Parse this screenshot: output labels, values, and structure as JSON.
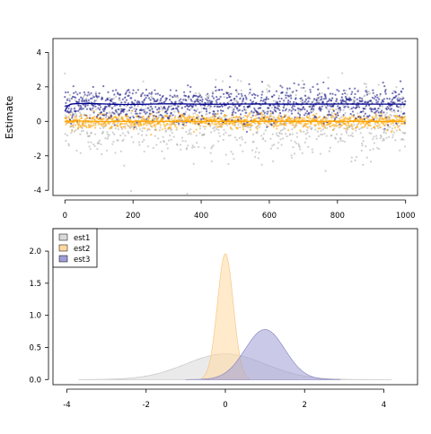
{
  "chart_data": [
    {
      "type": "scatter",
      "panel": "top",
      "title": "",
      "xlabel": "",
      "ylabel": "Estimate",
      "xlim": [
        -35,
        1035
      ],
      "ylim": [
        -4.3,
        4.8
      ],
      "xticks": [
        0,
        200,
        400,
        600,
        800,
        1000
      ],
      "xtick_labels": [
        "0",
        "200",
        "400",
        "600",
        "800",
        "1000"
      ],
      "yticks": [
        -4,
        -2,
        0,
        2,
        4
      ],
      "ytick_labels": [
        "-4",
        "-2",
        "0",
        "2",
        "4"
      ],
      "grid": false,
      "n_points_per_series": 1000,
      "series": [
        {
          "name": "est1",
          "color": "#aaaaaa",
          "mean": 0.0,
          "sd": 1.0,
          "running_mean_shown": false
        },
        {
          "name": "est2",
          "color": "#ffa500",
          "mean": 0.0,
          "sd": 0.2,
          "running_mean_shown": true,
          "running_mean_color": "#ffa500"
        },
        {
          "name": "est3",
          "color": "#1a1a8c",
          "mean": 1.0,
          "sd": 0.5,
          "running_mean_shown": true,
          "running_mean_color": "#00008b",
          "running_mean_start": 0.5,
          "running_mean_end": 1.0
        }
      ]
    },
    {
      "type": "area",
      "panel": "bottom",
      "title": "",
      "xlabel": "",
      "ylabel": "",
      "xlim": [
        -4.35,
        4.85
      ],
      "ylim": [
        -0.08,
        2.35
      ],
      "xticks": [
        -4,
        -2,
        0,
        2,
        4
      ],
      "xtick_labels": [
        "-4",
        "-2",
        "0",
        "2",
        "4"
      ],
      "yticks": [
        0,
        0.5,
        1,
        1.5,
        2
      ],
      "ytick_labels": [
        "0.0",
        "0.5",
        "1.0",
        "1.5",
        "2.0"
      ],
      "grid": false,
      "legend_position": "top-left",
      "series": [
        {
          "name": "est1",
          "fill": "#d9d9d9",
          "stroke": "#bfbfbf",
          "mean": 0.0,
          "sd": 1.0,
          "peak": 0.4,
          "x_range": [
            -3.7,
            4.2
          ]
        },
        {
          "name": "est2",
          "fill": "#ffd9a0",
          "stroke": "#f5c27a",
          "mean": 0.0,
          "sd": 0.2,
          "peak": 1.96,
          "x_range": [
            -0.6,
            0.6
          ]
        },
        {
          "name": "est3",
          "fill": "#9e9ed6",
          "stroke": "#7f7fc0",
          "mean": 1.0,
          "sd": 0.5,
          "peak": 0.78,
          "x_range": [
            -1.0,
            2.9
          ]
        }
      ]
    }
  ]
}
